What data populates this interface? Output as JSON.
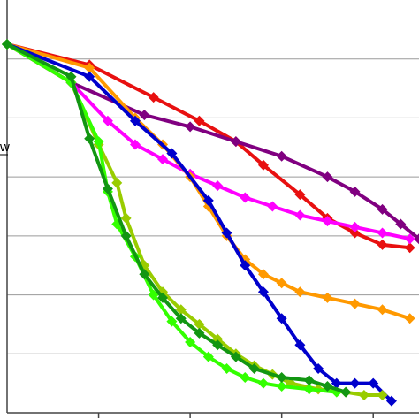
{
  "chart_data": {
    "type": "line",
    "title": "",
    "xlabel": "",
    "ylabel_fragment": "w",
    "xlim": [
      0,
      45
    ],
    "ylim": [
      0,
      7
    ],
    "grid": "horizontal",
    "series": [
      {
        "color": "#e81010",
        "marker": "diamond",
        "x": [
          0,
          9,
          16,
          21,
          25,
          28,
          32,
          35,
          38,
          41,
          44
        ],
        "y": [
          6.25,
          5.9,
          5.35,
          4.95,
          4.6,
          4.2,
          3.7,
          3.3,
          3.05,
          2.85,
          2.8
        ]
      },
      {
        "color": "#800080",
        "marker": "diamond",
        "x": [
          0,
          7,
          15,
          20,
          25,
          30,
          35,
          38,
          41,
          43,
          45
        ],
        "y": [
          6.25,
          5.6,
          5.05,
          4.85,
          4.6,
          4.35,
          4.0,
          3.75,
          3.45,
          3.2,
          2.95
        ]
      },
      {
        "color": "#ff00ff",
        "marker": "diamond",
        "x": [
          0,
          7,
          11,
          14,
          17,
          20,
          23,
          26,
          29,
          32,
          35,
          38,
          41,
          44
        ],
        "y": [
          6.25,
          5.6,
          4.95,
          4.55,
          4.3,
          4.05,
          3.85,
          3.65,
          3.5,
          3.35,
          3.25,
          3.15,
          3.05,
          2.95
        ]
      },
      {
        "color": "#ff9900",
        "marker": "diamond",
        "x": [
          0,
          9,
          14,
          17,
          20,
          22,
          24,
          26,
          28,
          30,
          32,
          35,
          38,
          41,
          44
        ],
        "y": [
          6.25,
          5.85,
          5.0,
          4.55,
          4.0,
          3.5,
          3.0,
          2.6,
          2.35,
          2.2,
          2.05,
          1.95,
          1.85,
          1.75,
          1.6
        ]
      },
      {
        "color": "#0000cc",
        "marker": "diamond",
        "x": [
          0,
          9,
          14,
          18,
          22,
          24,
          26,
          28,
          30,
          32,
          34,
          36,
          38,
          40,
          42
        ],
        "y": [
          6.25,
          5.7,
          4.95,
          4.4,
          3.6,
          3.05,
          2.5,
          2.05,
          1.6,
          1.15,
          0.75,
          0.5,
          0.5,
          0.5,
          0.2
        ]
      },
      {
        "color": "#99cc00",
        "marker": "diamond",
        "x": [
          0,
          7,
          10,
          12,
          13,
          15,
          17,
          19,
          21,
          23,
          25,
          27,
          29,
          31,
          34,
          37,
          39,
          41
        ],
        "y": [
          6.25,
          5.6,
          4.55,
          3.9,
          3.3,
          2.5,
          2.05,
          1.75,
          1.5,
          1.25,
          1.0,
          0.8,
          0.65,
          0.5,
          0.4,
          0.35,
          0.3,
          0.3
        ]
      },
      {
        "color": "#33ff00",
        "marker": "diamond",
        "x": [
          0,
          7,
          10,
          11,
          12,
          14,
          16,
          18,
          20,
          22,
          24,
          26,
          28,
          30,
          33,
          36
        ],
        "y": [
          6.25,
          5.6,
          4.6,
          3.75,
          3.2,
          2.65,
          2.0,
          1.55,
          1.2,
          0.95,
          0.75,
          0.6,
          0.5,
          0.45,
          0.4,
          0.35
        ]
      },
      {
        "color": "#129612",
        "marker": "diamond",
        "x": [
          0,
          7,
          9,
          11,
          13,
          15,
          17,
          19,
          21,
          23,
          25,
          27,
          30,
          33,
          35,
          37
        ],
        "y": [
          6.25,
          5.7,
          4.65,
          3.8,
          3.0,
          2.35,
          1.95,
          1.6,
          1.35,
          1.15,
          0.95,
          0.75,
          0.6,
          0.55,
          0.45,
          0.35
        ]
      }
    ]
  }
}
